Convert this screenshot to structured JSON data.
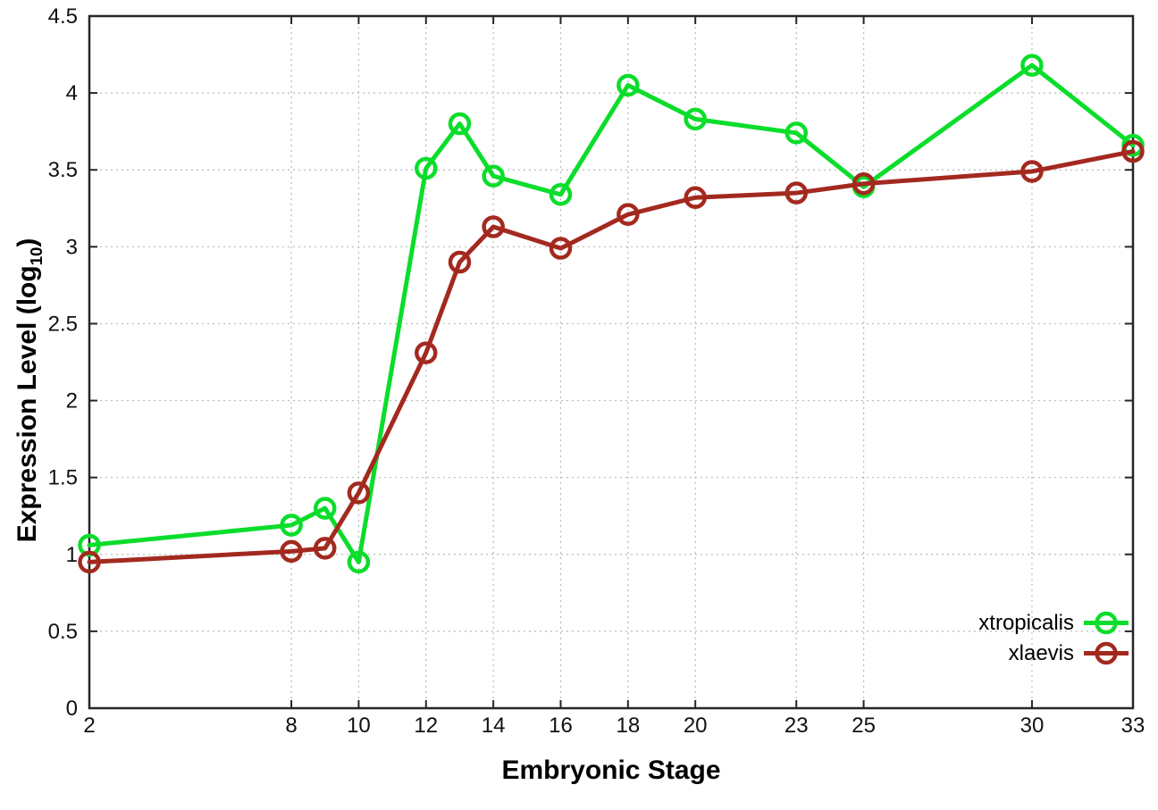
{
  "chart_data": {
    "type": "line",
    "title": "",
    "xlabel": "Embryonic Stage",
    "ylabel": {
      "prefix": "Expression Level (log",
      "sub": "10",
      "suffix": ")"
    },
    "xlim": [
      2,
      33
    ],
    "ylim": [
      0,
      4.5
    ],
    "xticks": [
      2,
      8,
      10,
      12,
      14,
      16,
      18,
      20,
      23,
      25,
      30,
      33
    ],
    "xtick_labels": [
      "2",
      "8",
      "10",
      "12",
      "14",
      "16",
      "18",
      "20",
      "23",
      "25",
      "30",
      "33"
    ],
    "yticks": [
      0,
      0.5,
      1,
      1.5,
      2,
      2.5,
      3,
      3.5,
      4,
      4.5
    ],
    "ytick_labels": [
      "0",
      "0.5",
      "1",
      "1.5",
      "2",
      "2.5",
      "3",
      "3.5",
      "4",
      "4.5"
    ],
    "grid": true,
    "legend_position": "bottom-right",
    "x": [
      2,
      8,
      9,
      10,
      12,
      13,
      14,
      16,
      18,
      20,
      23,
      25,
      30,
      33
    ],
    "series": [
      {
        "name": "xtropicalis",
        "color": "#0bdd2b",
        "values": [
          1.06,
          1.19,
          1.3,
          0.95,
          3.51,
          3.8,
          3.46,
          3.34,
          4.05,
          3.83,
          3.74,
          3.39,
          4.18,
          3.66
        ]
      },
      {
        "name": "xlaevis",
        "color": "#a3291f",
        "values": [
          0.95,
          1.02,
          1.04,
          1.4,
          2.31,
          2.9,
          3.13,
          2.99,
          3.21,
          3.32,
          3.35,
          3.41,
          3.49,
          3.62
        ]
      }
    ]
  }
}
